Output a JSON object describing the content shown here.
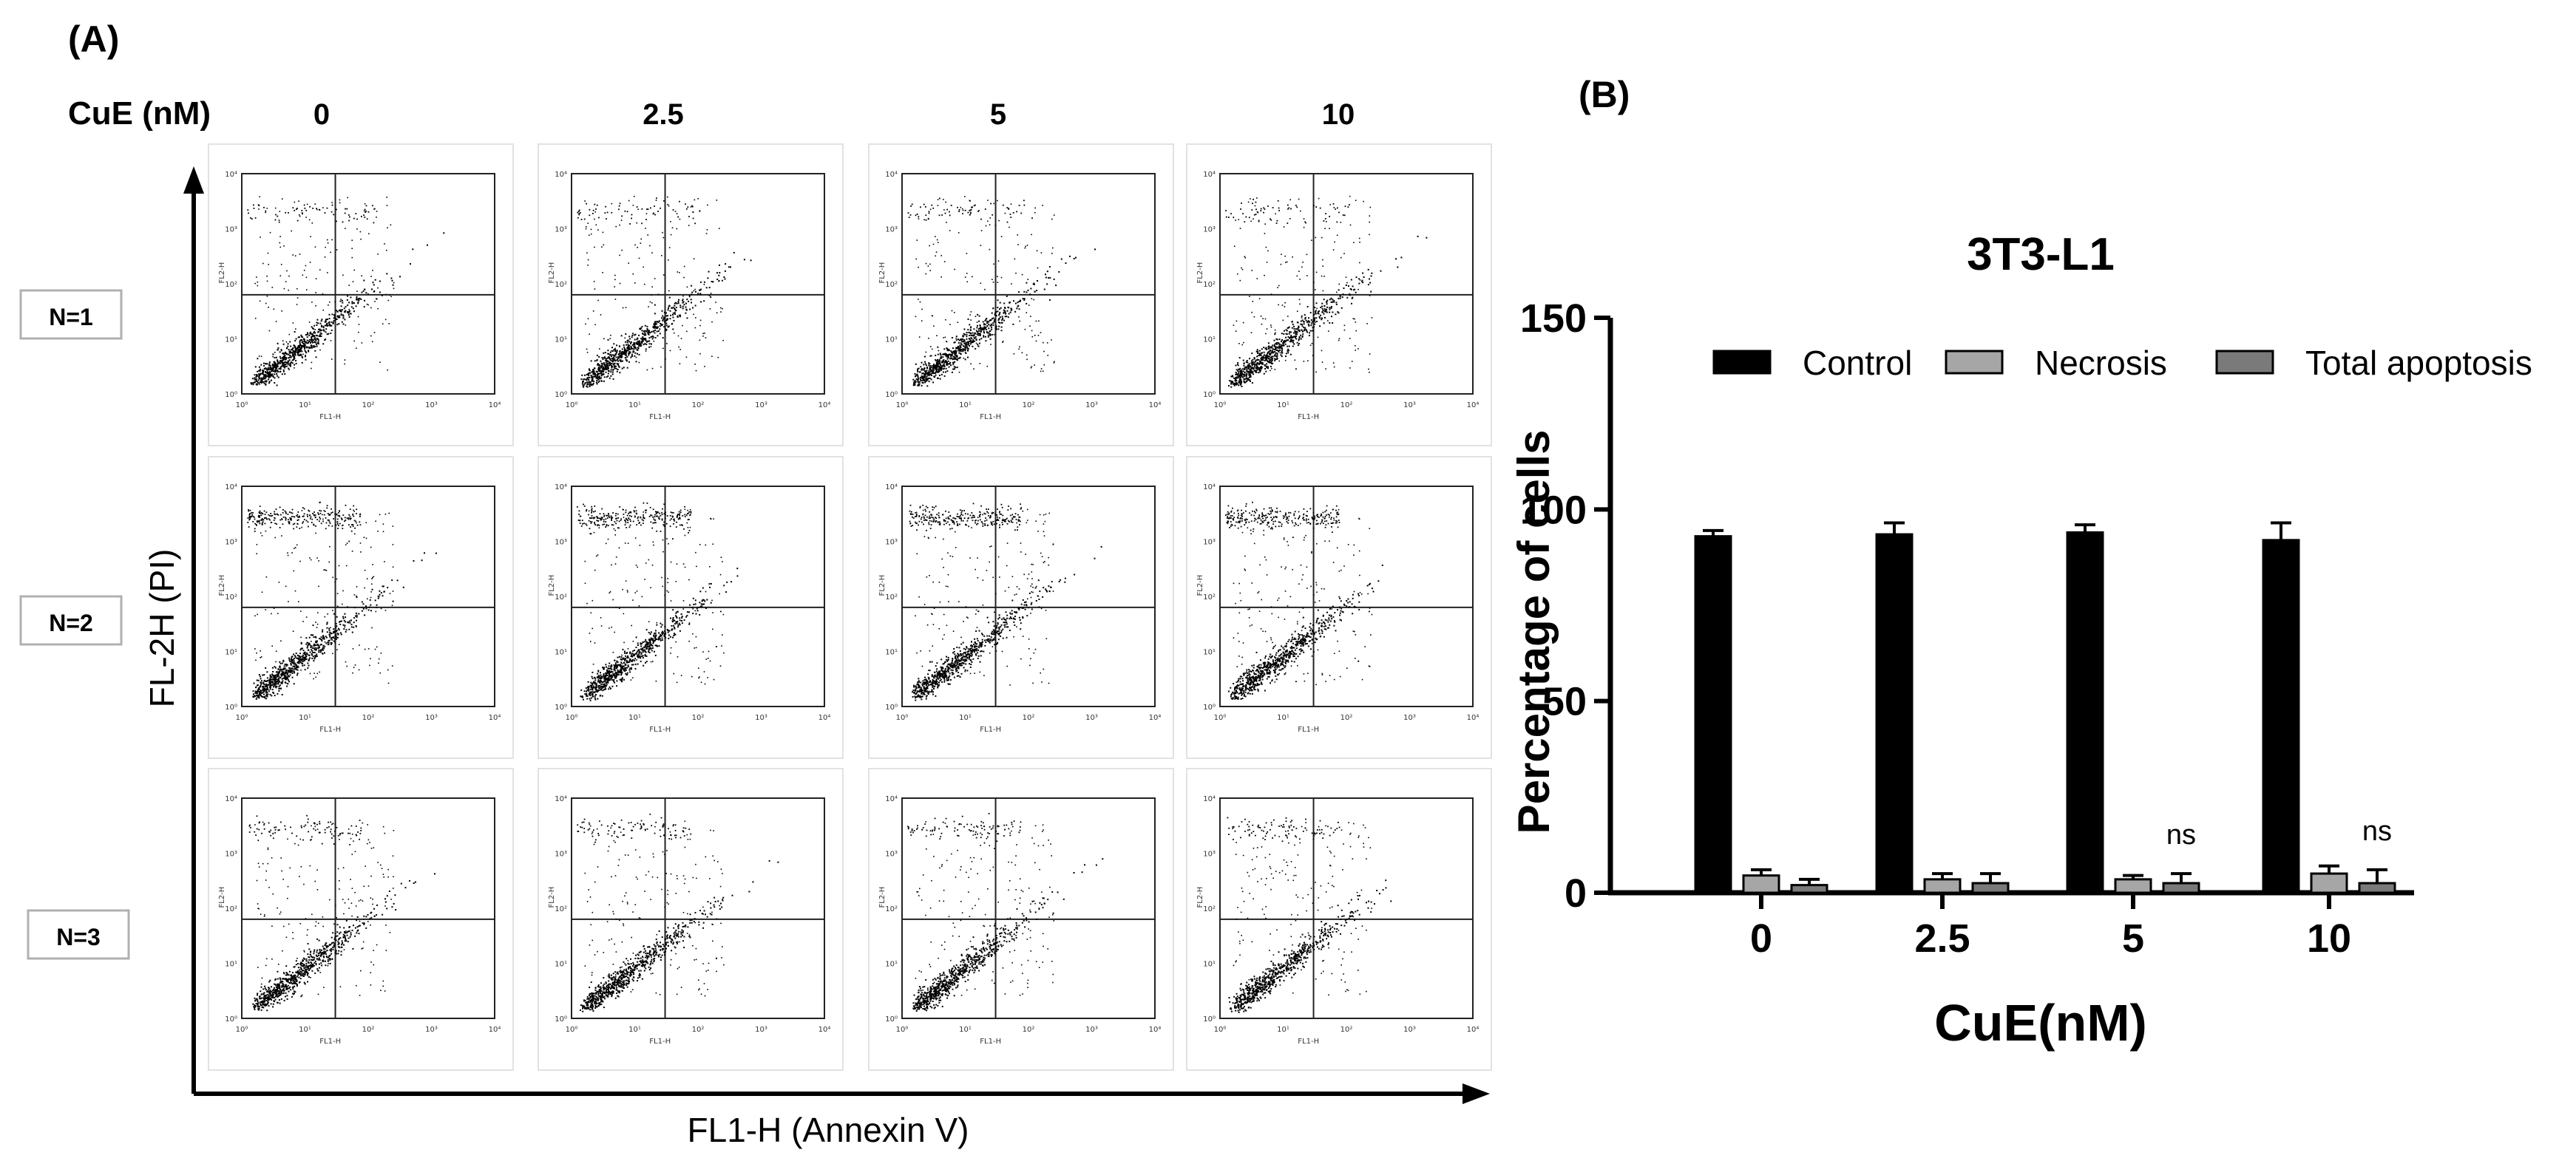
{
  "panel_a": {
    "label": "(A)",
    "dose_header": "CuE (nM)",
    "doses": [
      "0",
      "2.5",
      "5",
      "10"
    ],
    "replicates": [
      "N=1",
      "N=2",
      "N=3"
    ],
    "y_axis_label": "FL-2H (PI)",
    "x_axis_label": "FL1-H (Annexin V)",
    "plot_x_axis_label": "FL1-H",
    "plot_y_axis_label": "FL2-H",
    "tick_labels": [
      "10⁰",
      "10¹",
      "10²",
      "10³",
      "10⁴"
    ]
  },
  "panel_b": {
    "label": "(B)"
  },
  "chart_data": {
    "type": "bar",
    "title": "3T3-L1",
    "xlabel": "CuE(nM)",
    "ylabel": "Percentage of cells",
    "categories": [
      "0",
      "2.5",
      "5",
      "10"
    ],
    "ylim": [
      0,
      150
    ],
    "yticks": [
      0,
      50,
      100,
      150
    ],
    "series": [
      {
        "name": "Control",
        "color": "#000000",
        "values": [
          93,
          93.5,
          94,
          92
        ],
        "errors": [
          1.5,
          3,
          2,
          4.5
        ]
      },
      {
        "name": "Necrosis",
        "color": "#a6a6a6",
        "values": [
          4.5,
          3.5,
          3.5,
          5
        ],
        "errors": [
          1.5,
          1.5,
          1,
          2
        ]
      },
      {
        "name": "Total apoptosis",
        "color": "#7a7a7a",
        "values": [
          2,
          2.5,
          2.5,
          2.5
        ],
        "errors": [
          1.5,
          2.5,
          2.5,
          3.5
        ]
      }
    ],
    "annotations": [
      {
        "category": "5",
        "text": "ns"
      },
      {
        "category": "10",
        "text": "ns"
      }
    ],
    "legend_position": "top"
  }
}
